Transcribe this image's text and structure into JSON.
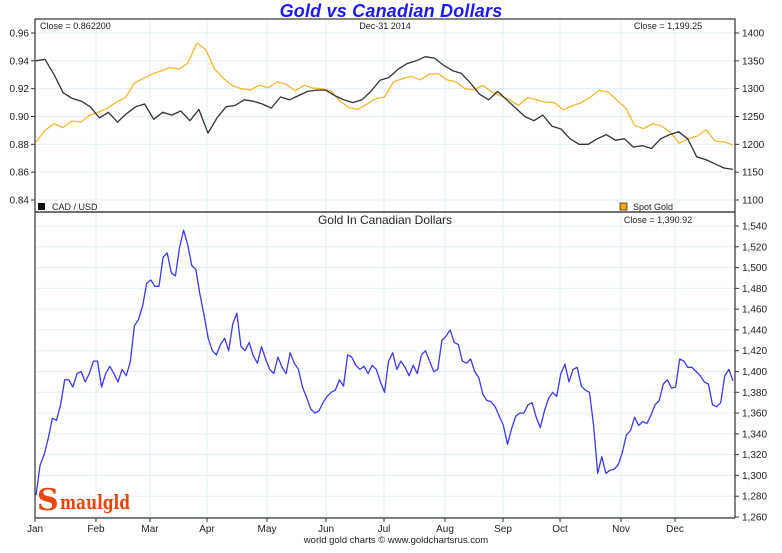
{
  "title": "Gold vs Canadian Dollars",
  "footer": "world gold charts © www.goldchartsrus.com",
  "logo": {
    "initial": "S",
    "rest": "maulgld"
  },
  "colors": {
    "title": "#1a1aff",
    "cad": "#333333",
    "gold": "#f5b731",
    "gold_cad": "#3a3af0",
    "grid": "#e3f0fa",
    "logo": "#e8460c"
  },
  "chart_data": [
    {
      "type": "line",
      "title": "",
      "date_label": "Dec-31  2014",
      "left_close_label": "Close = 0.862200",
      "right_close_label": "Close = 1,199.25",
      "x": [
        "Jan",
        "Feb",
        "Mar",
        "Apr",
        "May",
        "Jun",
        "Jul",
        "Aug",
        "Sep",
        "Oct",
        "Nov",
        "Dec"
      ],
      "x_months": [
        "Jan",
        "Feb",
        "Mar",
        "Apr",
        "May",
        "Jun",
        "Jul",
        "Aug",
        "Sep",
        "Oct",
        "Nov",
        "Dec"
      ],
      "y_left_ticks": [
        "0.96",
        "0.94",
        "0.92",
        "0.90",
        "0.88",
        "0.86",
        "0.84"
      ],
      "y_left_lim": [
        0.84,
        0.96
      ],
      "y_right_ticks": [
        "1400",
        "1350",
        "1300",
        "1250",
        "1200",
        "1150",
        "1100"
      ],
      "y_right_lim": [
        1100,
        1400
      ],
      "grid": true,
      "legend": [
        {
          "name": "CAD / USD",
          "position": "bottom-left"
        },
        {
          "name": "Spot Gold",
          "position": "bottom-right"
        }
      ],
      "series": [
        {
          "name": "CAD / USD",
          "axis": "left",
          "values": [
            0.94,
            0.941,
            0.93,
            0.917,
            0.913,
            0.911,
            0.907,
            0.899,
            0.903,
            0.896,
            0.902,
            0.907,
            0.909,
            0.898,
            0.903,
            0.901,
            0.904,
            0.897,
            0.905,
            0.888,
            0.899,
            0.907,
            0.908,
            0.912,
            0.911,
            0.909,
            0.906,
            0.914,
            0.912,
            0.915,
            0.918,
            0.919,
            0.919,
            0.915,
            0.912,
            0.91,
            0.912,
            0.918,
            0.926,
            0.928,
            0.934,
            0.938,
            0.94,
            0.943,
            0.942,
            0.937,
            0.933,
            0.931,
            0.924,
            0.916,
            0.912,
            0.918,
            0.912,
            0.906,
            0.9,
            0.897,
            0.901,
            0.893,
            0.891,
            0.884,
            0.88,
            0.88,
            0.884,
            0.887,
            0.883,
            0.884,
            0.878,
            0.879,
            0.877,
            0.884,
            0.887,
            0.889,
            0.884,
            0.871,
            0.869,
            0.866,
            0.863,
            0.862
          ]
        },
        {
          "name": "Spot Gold",
          "axis": "right",
          "values": [
            1204,
            1225,
            1237,
            1230,
            1242,
            1240,
            1252,
            1258,
            1265,
            1276,
            1284,
            1310,
            1318,
            1326,
            1332,
            1338,
            1335,
            1346,
            1382,
            1370,
            1335,
            1318,
            1305,
            1300,
            1298,
            1306,
            1302,
            1312,
            1308,
            1296,
            1306,
            1301,
            1300,
            1296,
            1278,
            1266,
            1263,
            1272,
            1282,
            1285,
            1312,
            1318,
            1322,
            1316,
            1326,
            1327,
            1316,
            1312,
            1300,
            1298,
            1306,
            1294,
            1287,
            1280,
            1270,
            1284,
            1280,
            1276,
            1275,
            1262,
            1269,
            1275,
            1284,
            1297,
            1294,
            1280,
            1265,
            1234,
            1228,
            1237,
            1233,
            1221,
            1202,
            1210,
            1215,
            1226,
            1206,
            1204,
            1199
          ]
        }
      ]
    },
    {
      "type": "line",
      "title": "Gold In Canadian Dollars",
      "close_label": "Close = 1,390.92",
      "x_months": [
        "Jan",
        "Feb",
        "Mar",
        "Apr",
        "May",
        "Jun",
        "Jul",
        "Aug",
        "Sep",
        "Oct",
        "Nov",
        "Dec"
      ],
      "y_ticks": [
        "1,540",
        "1,520",
        "1,500",
        "1,480",
        "1,460",
        "1,440",
        "1,420",
        "1,400",
        "1,380",
        "1,360",
        "1,340",
        "1,320",
        "1,300",
        "1,280",
        "1,260"
      ],
      "ylim": [
        1260,
        1545
      ],
      "grid": true,
      "series": [
        {
          "name": "Gold in CAD",
          "values": [
            1281,
            1310,
            1320,
            1336,
            1355,
            1353,
            1368,
            1392,
            1392,
            1385,
            1398,
            1400,
            1390,
            1398,
            1410,
            1410,
            1385,
            1398,
            1405,
            1398,
            1390,
            1402,
            1396,
            1409,
            1444,
            1450,
            1463,
            1485,
            1488,
            1482,
            1482,
            1510,
            1514,
            1495,
            1492,
            1519,
            1536,
            1522,
            1502,
            1498,
            1474,
            1454,
            1432,
            1420,
            1416,
            1426,
            1432,
            1420,
            1446,
            1456,
            1424,
            1420,
            1428,
            1415,
            1408,
            1424,
            1412,
            1402,
            1398,
            1414,
            1404,
            1398,
            1418,
            1408,
            1402,
            1385,
            1375,
            1364,
            1360,
            1362,
            1370,
            1376,
            1380,
            1382,
            1392,
            1386,
            1416,
            1414,
            1406,
            1402,
            1405,
            1398,
            1406,
            1402,
            1390,
            1380,
            1410,
            1418,
            1402,
            1410,
            1404,
            1396,
            1406,
            1398,
            1416,
            1420,
            1410,
            1400,
            1402,
            1430,
            1434,
            1440,
            1428,
            1426,
            1410,
            1408,
            1412,
            1400,
            1394,
            1378,
            1372,
            1371,
            1366,
            1357,
            1348,
            1330,
            1345,
            1357,
            1360,
            1360,
            1368,
            1370,
            1356,
            1346,
            1362,
            1374,
            1380,
            1376,
            1398,
            1407,
            1390,
            1402,
            1404,
            1386,
            1382,
            1380,
            1348,
            1302,
            1318,
            1302,
            1305,
            1306,
            1310,
            1322,
            1339,
            1343,
            1356,
            1348,
            1352,
            1350,
            1358,
            1368,
            1372,
            1388,
            1392,
            1384,
            1385,
            1412,
            1410,
            1404,
            1404,
            1400,
            1396,
            1390,
            1388,
            1368,
            1366,
            1370,
            1396,
            1402,
            1391
          ]
        }
      ]
    }
  ]
}
